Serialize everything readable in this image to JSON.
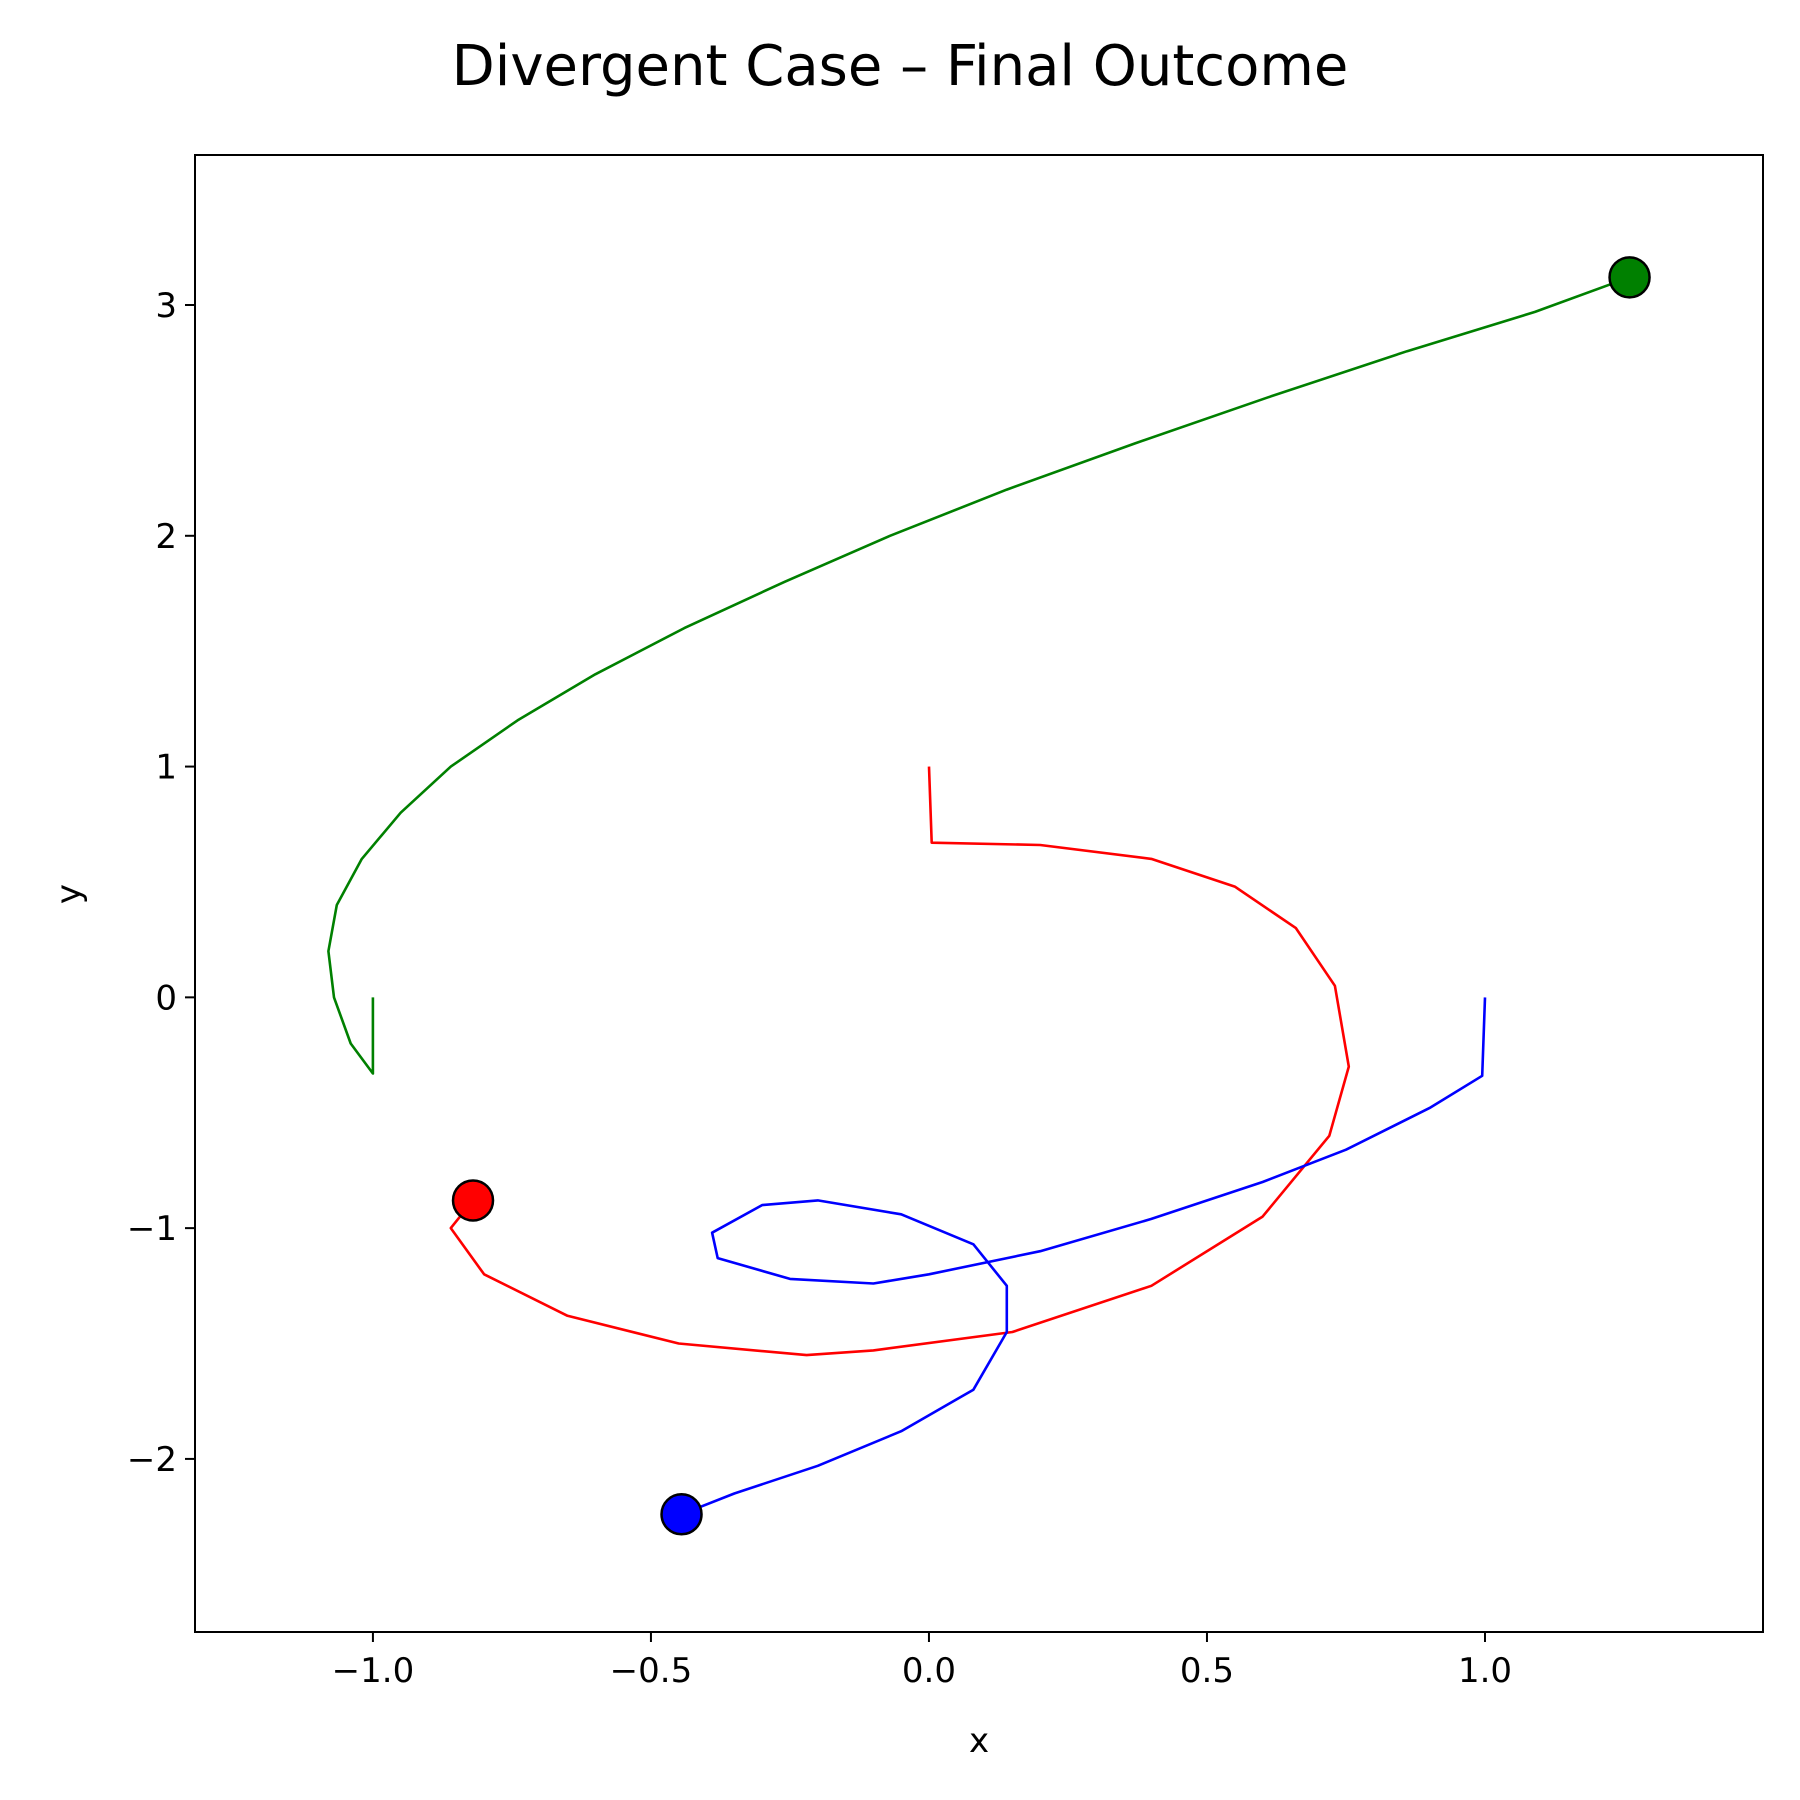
{
  "chart_data": {
    "type": "line",
    "title": "Divergent Case – Final Outcome",
    "xlabel": "x",
    "ylabel": "y",
    "xlim": [
      -1.32,
      1.5
    ],
    "ylim": [
      -2.75,
      3.65
    ],
    "xticks": [
      {
        "value": -1.0,
        "label": "−1.0"
      },
      {
        "value": -0.5,
        "label": "−0.5"
      },
      {
        "value": 0.0,
        "label": "0.0"
      },
      {
        "value": 0.5,
        "label": "0.5"
      },
      {
        "value": 1.0,
        "label": "1.0"
      }
    ],
    "yticks": [
      {
        "value": -2,
        "label": "−2"
      },
      {
        "value": -1,
        "label": "−1"
      },
      {
        "value": 0,
        "label": "0"
      },
      {
        "value": 1,
        "label": "1"
      },
      {
        "value": 2,
        "label": "2"
      },
      {
        "value": 3,
        "label": "3"
      }
    ],
    "grid": false,
    "series": [
      {
        "color": "#008000",
        "points": [
          [
            -1.0,
            0.0
          ],
          [
            -1.0,
            -0.33
          ],
          [
            -1.04,
            -0.2
          ],
          [
            -1.07,
            0.0
          ],
          [
            -1.08,
            0.2
          ],
          [
            -1.065,
            0.4
          ],
          [
            -1.02,
            0.6
          ],
          [
            -0.95,
            0.8
          ],
          [
            -0.86,
            1.0
          ],
          [
            -0.74,
            1.2
          ],
          [
            -0.6,
            1.4
          ],
          [
            -0.44,
            1.6
          ],
          [
            -0.26,
            1.8
          ],
          [
            -0.07,
            2.0
          ],
          [
            0.14,
            2.2
          ],
          [
            0.37,
            2.4
          ],
          [
            0.61,
            2.6
          ],
          [
            0.86,
            2.8
          ],
          [
            1.09,
            2.97
          ],
          [
            1.26,
            3.12
          ]
        ],
        "final": [
          1.26,
          3.12
        ]
      },
      {
        "color": "#ff0000",
        "points": [
          [
            0.0,
            1.0
          ],
          [
            0.005,
            0.67
          ],
          [
            0.2,
            0.66
          ],
          [
            0.4,
            0.6
          ],
          [
            0.55,
            0.48
          ],
          [
            0.66,
            0.3
          ],
          [
            0.73,
            0.05
          ],
          [
            0.755,
            -0.3
          ],
          [
            0.72,
            -0.6
          ],
          [
            0.6,
            -0.95
          ],
          [
            0.4,
            -1.25
          ],
          [
            0.15,
            -1.45
          ],
          [
            -0.1,
            -1.53
          ],
          [
            -0.22,
            -1.55
          ],
          [
            -0.45,
            -1.5
          ],
          [
            -0.65,
            -1.38
          ],
          [
            -0.8,
            -1.2
          ],
          [
            -0.86,
            -1.0
          ],
          [
            -0.82,
            -0.88
          ]
        ],
        "final": [
          -0.82,
          -0.88
        ]
      },
      {
        "color": "#0000ff",
        "points": [
          [
            1.0,
            0.0
          ],
          [
            0.995,
            -0.34
          ],
          [
            0.9,
            -0.48
          ],
          [
            0.75,
            -0.66
          ],
          [
            0.6,
            -0.8
          ],
          [
            0.4,
            -0.96
          ],
          [
            0.2,
            -1.1
          ],
          [
            0.0,
            -1.2
          ],
          [
            -0.1,
            -1.24
          ],
          [
            -0.25,
            -1.22
          ],
          [
            -0.38,
            -1.13
          ],
          [
            -0.39,
            -1.02
          ],
          [
            -0.3,
            -0.9
          ],
          [
            -0.2,
            -0.88
          ],
          [
            -0.05,
            -0.94
          ],
          [
            0.08,
            -1.07
          ],
          [
            0.14,
            -1.25
          ],
          [
            0.14,
            -1.45
          ],
          [
            0.08,
            -1.7
          ],
          [
            -0.05,
            -1.88
          ],
          [
            -0.2,
            -2.03
          ],
          [
            -0.35,
            -2.15
          ],
          [
            -0.445,
            -2.24
          ]
        ],
        "final": [
          -0.445,
          -2.24
        ]
      }
    ]
  }
}
